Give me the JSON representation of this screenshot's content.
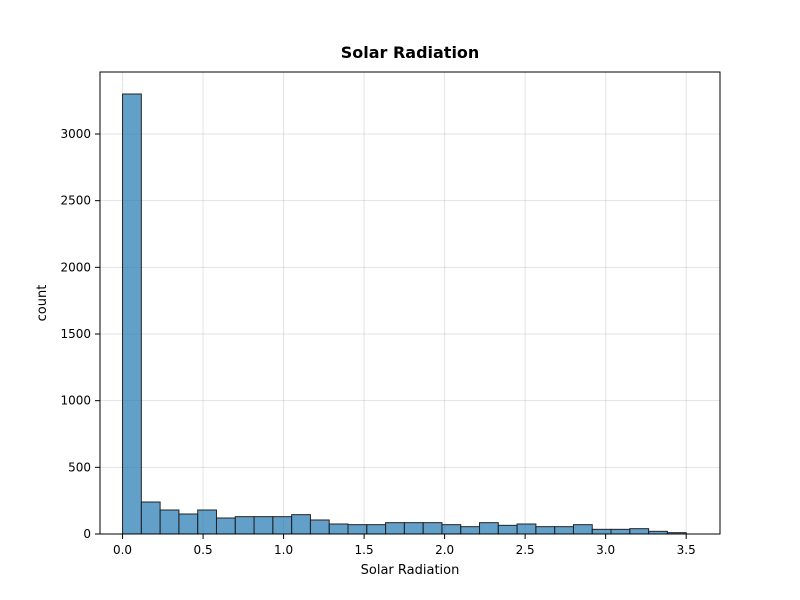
{
  "chart_data": {
    "type": "bar",
    "title": "Solar Radiation",
    "xlabel": "Solar Radiation",
    "ylabel": "count",
    "xlim": [
      -0.14,
      3.71
    ],
    "ylim": [
      0,
      3465
    ],
    "grid": true,
    "bin_edges": [
      0.0,
      0.1167,
      0.2333,
      0.35,
      0.4667,
      0.5833,
      0.7,
      0.8167,
      0.9333,
      1.05,
      1.1667,
      1.2833,
      1.4,
      1.5167,
      1.6333,
      1.75,
      1.8667,
      1.9833,
      2.1,
      2.2167,
      2.3333,
      2.45,
      2.5667,
      2.6833,
      2.8,
      2.9167,
      3.0333,
      3.15,
      3.2667,
      3.3833,
      3.5
    ],
    "values": [
      3300,
      240,
      180,
      150,
      180,
      120,
      130,
      130,
      130,
      145,
      105,
      75,
      70,
      70,
      85,
      85,
      85,
      70,
      55,
      85,
      65,
      75,
      55,
      55,
      70,
      35,
      35,
      40,
      20,
      10
    ],
    "x_ticks": [
      0.0,
      0.5,
      1.0,
      1.5,
      2.0,
      2.5,
      3.0,
      3.5
    ],
    "x_tick_labels": [
      "0.0",
      "0.5",
      "1.0",
      "1.5",
      "2.0",
      "2.5",
      "3.0",
      "3.5"
    ],
    "y_ticks": [
      0,
      500,
      1000,
      1500,
      2000,
      2500,
      3000
    ],
    "y_tick_labels": [
      "0",
      "500",
      "1000",
      "1500",
      "2000",
      "2500",
      "3000"
    ]
  }
}
